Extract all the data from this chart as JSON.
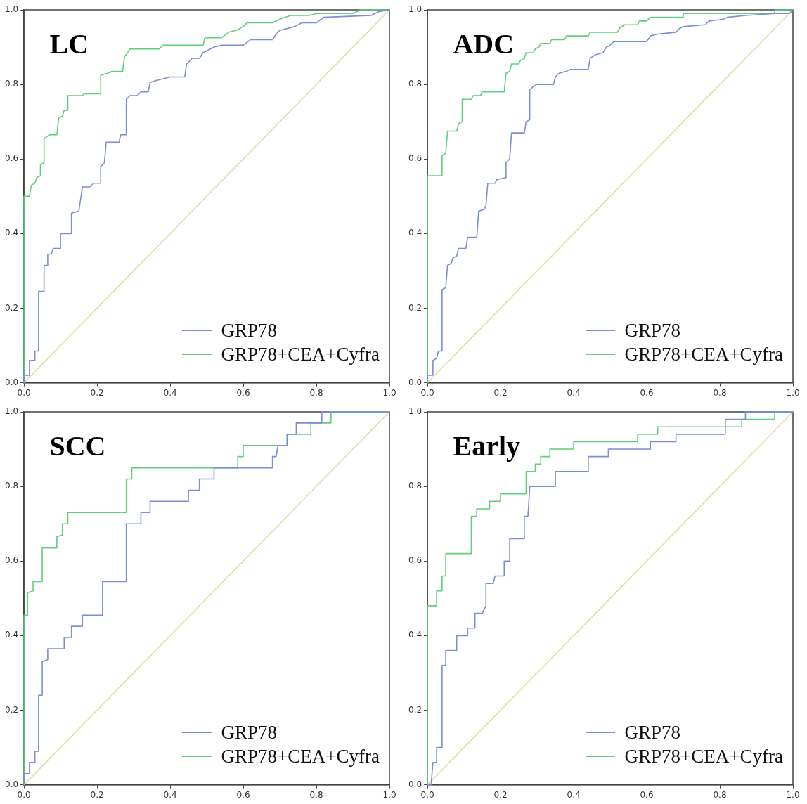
{
  "chart_data": [
    {
      "type": "line",
      "title": "LC",
      "xlim": [
        0,
        1
      ],
      "ylim": [
        0,
        1
      ],
      "marker": "none",
      "legend": "bottom right",
      "xticks": [
        {
          "value": 0,
          "label": "0.0"
        },
        {
          "value": 0.2,
          "label": "0.2"
        },
        {
          "value": 0.4,
          "label": "0.4"
        },
        {
          "value": 0.6,
          "label": "0.6"
        },
        {
          "value": 0.8,
          "label": "0.8"
        },
        {
          "value": 1,
          "label": "1.0"
        }
      ],
      "yticks": [
        {
          "value": 0,
          "label": "0.0"
        },
        {
          "value": 0.2,
          "label": "0.2"
        },
        {
          "value": 0.4,
          "label": "0.4"
        },
        {
          "value": 0.6,
          "label": "0.6"
        },
        {
          "value": 0.8,
          "label": "0.8"
        },
        {
          "value": 1,
          "label": "1.0"
        }
      ],
      "series": [
        {
          "name": "GRP78",
          "color": "#7b8ed6",
          "x": [
            0,
            0,
            0.015,
            0.015,
            0.03,
            0.03,
            0.04,
            0.04,
            0.055,
            0.055,
            0.065,
            0.065,
            0.075,
            0.08,
            0.1,
            0.1,
            0.13,
            0.13,
            0.15,
            0.16,
            0.18,
            0.19,
            0.21,
            0.21,
            0.22,
            0.225,
            0.26,
            0.265,
            0.28,
            0.28,
            0.29,
            0.31,
            0.32,
            0.34,
            0.345,
            0.36,
            0.4,
            0.44,
            0.445,
            0.46,
            0.48,
            0.49,
            0.52,
            0.54,
            0.6,
            0.62,
            0.68,
            0.69,
            0.7,
            0.74,
            0.76,
            0.8,
            0.82,
            0.95,
            0.97,
            1
          ],
          "values": [
            0,
            0.02,
            0.02,
            0.06,
            0.06,
            0.085,
            0.085,
            0.245,
            0.245,
            0.315,
            0.315,
            0.345,
            0.345,
            0.36,
            0.36,
            0.4,
            0.4,
            0.455,
            0.46,
            0.525,
            0.525,
            0.535,
            0.535,
            0.58,
            0.59,
            0.645,
            0.645,
            0.665,
            0.665,
            0.76,
            0.77,
            0.77,
            0.78,
            0.78,
            0.805,
            0.81,
            0.82,
            0.82,
            0.855,
            0.87,
            0.87,
            0.885,
            0.9,
            0.905,
            0.905,
            0.92,
            0.92,
            0.935,
            0.945,
            0.955,
            0.965,
            0.965,
            0.98,
            0.985,
            0.995,
            1
          ]
        },
        {
          "name": "GRP78+CEA+Cyfra",
          "color": "#5fcf7a",
          "x": [
            0,
            0,
            0.015,
            0.02,
            0.03,
            0.035,
            0.045,
            0.045,
            0.055,
            0.055,
            0.07,
            0.09,
            0.095,
            0.105,
            0.11,
            0.12,
            0.12,
            0.16,
            0.165,
            0.21,
            0.21,
            0.23,
            0.24,
            0.27,
            0.275,
            0.28,
            0.29,
            0.37,
            0.38,
            0.49,
            0.495,
            0.54,
            0.56,
            0.58,
            0.6,
            0.61,
            0.68,
            0.7,
            0.73,
            0.78,
            0.8,
            0.9,
            0.92,
            1
          ],
          "values": [
            0,
            0.5,
            0.5,
            0.53,
            0.535,
            0.55,
            0.555,
            0.585,
            0.59,
            0.655,
            0.665,
            0.665,
            0.71,
            0.715,
            0.73,
            0.73,
            0.77,
            0.77,
            0.775,
            0.775,
            0.825,
            0.83,
            0.835,
            0.835,
            0.875,
            0.88,
            0.895,
            0.895,
            0.905,
            0.905,
            0.925,
            0.925,
            0.94,
            0.945,
            0.955,
            0.965,
            0.965,
            0.975,
            0.985,
            0.985,
            0.99,
            0.99,
            1,
            1
          ]
        },
        {
          "color": "#e0dcaa",
          "x": [
            0,
            1
          ],
          "values": [
            0,
            1
          ]
        }
      ]
    },
    {
      "type": "line",
      "title": "ADC",
      "xlim": [
        0,
        1
      ],
      "ylim": [
        0,
        1
      ],
      "marker": "none",
      "legend": "bottom right",
      "xticks": [
        {
          "value": 0,
          "label": "0.0"
        },
        {
          "value": 0.2,
          "label": "0.2"
        },
        {
          "value": 0.4,
          "label": "0.4"
        },
        {
          "value": 0.6,
          "label": "0.6"
        },
        {
          "value": 0.8,
          "label": "0.8"
        },
        {
          "value": 1,
          "label": "1.0"
        }
      ],
      "yticks": [
        {
          "value": 0,
          "label": "0.0"
        },
        {
          "value": 0.2,
          "label": "0.2"
        },
        {
          "value": 0.4,
          "label": "0.4"
        },
        {
          "value": 0.6,
          "label": "0.6"
        },
        {
          "value": 0.8,
          "label": "0.8"
        },
        {
          "value": 1,
          "label": "1.0"
        }
      ],
      "series": [
        {
          "name": "GRP78",
          "color": "#7b8ed6",
          "x": [
            0,
            0,
            0.015,
            0.015,
            0.025,
            0.03,
            0.04,
            0.04,
            0.05,
            0.055,
            0.065,
            0.07,
            0.08,
            0.085,
            0.105,
            0.11,
            0.135,
            0.14,
            0.155,
            0.16,
            0.165,
            0.185,
            0.19,
            0.215,
            0.215,
            0.225,
            0.23,
            0.265,
            0.27,
            0.28,
            0.28,
            0.29,
            0.3,
            0.345,
            0.35,
            0.36,
            0.38,
            0.39,
            0.44,
            0.445,
            0.46,
            0.48,
            0.49,
            0.5,
            0.51,
            0.6,
            0.61,
            0.63,
            0.68,
            0.69,
            0.7,
            0.76,
            0.77,
            0.81,
            0.82,
            0.87,
            0.95,
            0.99,
            1
          ],
          "values": [
            0,
            0.02,
            0.02,
            0.06,
            0.065,
            0.085,
            0.085,
            0.25,
            0.255,
            0.315,
            0.32,
            0.335,
            0.34,
            0.36,
            0.36,
            0.39,
            0.39,
            0.46,
            0.465,
            0.475,
            0.535,
            0.535,
            0.545,
            0.55,
            0.59,
            0.6,
            0.67,
            0.67,
            0.7,
            0.705,
            0.785,
            0.795,
            0.8,
            0.8,
            0.82,
            0.83,
            0.835,
            0.84,
            0.84,
            0.87,
            0.88,
            0.885,
            0.9,
            0.905,
            0.915,
            0.915,
            0.93,
            0.935,
            0.94,
            0.95,
            0.955,
            0.96,
            0.97,
            0.975,
            0.98,
            0.985,
            0.99,
            0.99,
            1
          ]
        },
        {
          "name": "GRP78+CEA+Cyfra",
          "color": "#5fcf7a",
          "x": [
            0,
            0,
            0.04,
            0.04,
            0.05,
            0.055,
            0.08,
            0.085,
            0.095,
            0.095,
            0.12,
            0.125,
            0.145,
            0.15,
            0.21,
            0.215,
            0.225,
            0.23,
            0.25,
            0.255,
            0.265,
            0.27,
            0.29,
            0.295,
            0.305,
            0.31,
            0.335,
            0.34,
            0.375,
            0.38,
            0.44,
            0.445,
            0.52,
            0.525,
            0.54,
            0.575,
            0.58,
            0.6,
            0.61,
            0.7,
            0.7,
            0.95,
            0.95,
            1
          ],
          "values": [
            0,
            0.555,
            0.555,
            0.61,
            0.615,
            0.675,
            0.675,
            0.695,
            0.7,
            0.76,
            0.76,
            0.77,
            0.77,
            0.78,
            0.78,
            0.83,
            0.835,
            0.855,
            0.855,
            0.865,
            0.87,
            0.885,
            0.885,
            0.895,
            0.9,
            0.91,
            0.91,
            0.92,
            0.92,
            0.93,
            0.93,
            0.94,
            0.94,
            0.95,
            0.96,
            0.96,
            0.97,
            0.97,
            0.98,
            0.98,
            0.99,
            0.99,
            1,
            1
          ]
        },
        {
          "color": "#e0dcaa",
          "x": [
            0,
            1
          ],
          "values": [
            0,
            1
          ]
        }
      ]
    },
    {
      "type": "line",
      "title": "SCC",
      "xlim": [
        0,
        1
      ],
      "ylim": [
        0,
        1
      ],
      "marker": "none",
      "legend": "bottom right",
      "xticks": [
        {
          "value": 0,
          "label": "0.0"
        },
        {
          "value": 0.2,
          "label": "0.2"
        },
        {
          "value": 0.4,
          "label": "0.4"
        },
        {
          "value": 0.6,
          "label": "0.6"
        },
        {
          "value": 0.8,
          "label": "0.8"
        },
        {
          "value": 1,
          "label": "1.0"
        }
      ],
      "yticks": [
        {
          "value": 0,
          "label": "0.0"
        },
        {
          "value": 0.2,
          "label": "0.2"
        },
        {
          "value": 0.4,
          "label": "0.4"
        },
        {
          "value": 0.6,
          "label": "0.6"
        },
        {
          "value": 0.8,
          "label": "0.8"
        },
        {
          "value": 1,
          "label": "1.0"
        }
      ],
      "series": [
        {
          "name": "GRP78",
          "color": "#7b8ed6",
          "x": [
            0,
            0,
            0.015,
            0.015,
            0.03,
            0.03,
            0.04,
            0.04,
            0.05,
            0.05,
            0.065,
            0.065,
            0.11,
            0.11,
            0.13,
            0.13,
            0.16,
            0.16,
            0.215,
            0.215,
            0.28,
            0.28,
            0.32,
            0.32,
            0.345,
            0.345,
            0.45,
            0.45,
            0.48,
            0.48,
            0.52,
            0.52,
            0.68,
            0.68,
            0.69,
            0.695,
            0.72,
            0.72,
            0.745,
            0.745,
            0.815,
            0.815,
            1
          ],
          "values": [
            0,
            0.03,
            0.03,
            0.06,
            0.06,
            0.09,
            0.09,
            0.24,
            0.24,
            0.33,
            0.335,
            0.365,
            0.365,
            0.395,
            0.395,
            0.425,
            0.425,
            0.455,
            0.455,
            0.545,
            0.545,
            0.7,
            0.7,
            0.73,
            0.73,
            0.76,
            0.76,
            0.79,
            0.79,
            0.82,
            0.82,
            0.85,
            0.85,
            0.88,
            0.88,
            0.91,
            0.91,
            0.94,
            0.94,
            0.97,
            0.97,
            1,
            1
          ]
        },
        {
          "name": "GRP78+CEA+Cyfra",
          "color": "#5fcf7a",
          "x": [
            0,
            0,
            0.01,
            0.01,
            0.025,
            0.025,
            0.05,
            0.05,
            0.09,
            0.09,
            0.105,
            0.105,
            0.12,
            0.12,
            0.28,
            0.28,
            0.295,
            0.295,
            0.585,
            0.585,
            0.6,
            0.6,
            0.72,
            0.72,
            0.785,
            0.785,
            0.84,
            0.84,
            1
          ],
          "values": [
            0,
            0.455,
            0.455,
            0.515,
            0.52,
            0.545,
            0.545,
            0.635,
            0.635,
            0.665,
            0.67,
            0.7,
            0.7,
            0.73,
            0.73,
            0.82,
            0.82,
            0.85,
            0.85,
            0.88,
            0.88,
            0.91,
            0.91,
            0.94,
            0.94,
            0.97,
            0.97,
            1,
            1
          ]
        },
        {
          "color": "#e0dcaa",
          "x": [
            0,
            1
          ],
          "values": [
            0,
            1
          ]
        }
      ]
    },
    {
      "type": "line",
      "title": "Early",
      "xlim": [
        0,
        1
      ],
      "ylim": [
        0,
        1
      ],
      "marker": "none",
      "legend": "bottom right",
      "xticks": [
        {
          "value": 0,
          "label": "0.0"
        },
        {
          "value": 0.2,
          "label": "0.2"
        },
        {
          "value": 0.4,
          "label": "0.4"
        },
        {
          "value": 0.6,
          "label": "0.6"
        },
        {
          "value": 0.8,
          "label": "0.8"
        },
        {
          "value": 1,
          "label": "1.0"
        }
      ],
      "yticks": [
        {
          "value": 0,
          "label": "0.0"
        },
        {
          "value": 0.2,
          "label": "0.2"
        },
        {
          "value": 0.4,
          "label": "0.4"
        },
        {
          "value": 0.6,
          "label": "0.6"
        },
        {
          "value": 0.8,
          "label": "0.8"
        },
        {
          "value": 1,
          "label": "1.0"
        }
      ],
      "series": [
        {
          "name": "GRP78",
          "color": "#7b8ed6",
          "x": [
            0,
            0.01,
            0.015,
            0.025,
            0.025,
            0.04,
            0.04,
            0.05,
            0.05,
            0.08,
            0.08,
            0.11,
            0.11,
            0.13,
            0.13,
            0.15,
            0.16,
            0.16,
            0.18,
            0.185,
            0.21,
            0.21,
            0.225,
            0.225,
            0.265,
            0.265,
            0.275,
            0.28,
            0.35,
            0.35,
            0.44,
            0.44,
            0.495,
            0.495,
            0.61,
            0.61,
            0.68,
            0.68,
            0.815,
            0.815,
            0.87,
            0.87,
            1
          ],
          "values": [
            0,
            0,
            0.06,
            0.06,
            0.1,
            0.1,
            0.32,
            0.32,
            0.36,
            0.36,
            0.4,
            0.4,
            0.42,
            0.42,
            0.46,
            0.46,
            0.48,
            0.54,
            0.54,
            0.56,
            0.56,
            0.6,
            0.6,
            0.66,
            0.66,
            0.72,
            0.72,
            0.8,
            0.8,
            0.84,
            0.84,
            0.88,
            0.88,
            0.9,
            0.9,
            0.92,
            0.92,
            0.94,
            0.94,
            0.98,
            0.98,
            1,
            1
          ]
        },
        {
          "name": "GRP78+CEA+Cyfra",
          "color": "#5fcf7a",
          "x": [
            0,
            0,
            0.025,
            0.025,
            0.04,
            0.04,
            0.05,
            0.05,
            0.12,
            0.12,
            0.135,
            0.135,
            0.17,
            0.17,
            0.2,
            0.2,
            0.27,
            0.27,
            0.295,
            0.295,
            0.31,
            0.31,
            0.335,
            0.335,
            0.4,
            0.4,
            0.575,
            0.575,
            0.63,
            0.63,
            0.86,
            0.86,
            0.95,
            0.95,
            1
          ],
          "values": [
            0,
            0.48,
            0.48,
            0.52,
            0.52,
            0.56,
            0.56,
            0.62,
            0.62,
            0.72,
            0.72,
            0.74,
            0.74,
            0.76,
            0.76,
            0.78,
            0.78,
            0.84,
            0.84,
            0.86,
            0.86,
            0.88,
            0.88,
            0.9,
            0.9,
            0.92,
            0.92,
            0.94,
            0.94,
            0.96,
            0.96,
            0.98,
            0.98,
            1,
            1
          ]
        },
        {
          "color": "#e0dcaa",
          "x": [
            0,
            1
          ],
          "values": [
            0,
            1
          ]
        }
      ]
    }
  ]
}
